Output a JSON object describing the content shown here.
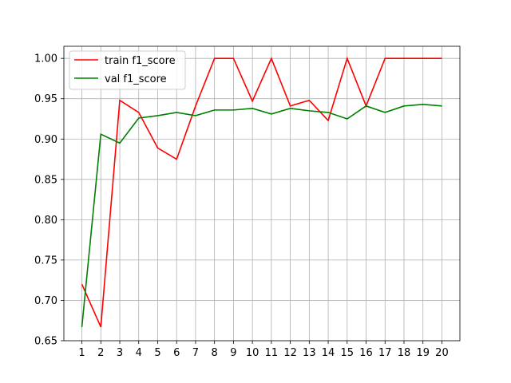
{
  "chart_data": {
    "type": "line",
    "title": "",
    "xlabel": "",
    "ylabel": "",
    "x": [
      1,
      2,
      3,
      4,
      5,
      6,
      7,
      8,
      9,
      10,
      11,
      12,
      13,
      14,
      15,
      16,
      17,
      18,
      19,
      20
    ],
    "xlim": [
      0.05,
      20.95
    ],
    "ylim": [
      0.65,
      1.015
    ],
    "yticks": [
      0.65,
      0.7,
      0.75,
      0.8,
      0.85,
      0.9,
      0.95,
      1.0
    ],
    "ytick_labels": [
      "0.65",
      "0.70",
      "0.75",
      "0.80",
      "0.85",
      "0.90",
      "0.95",
      "1.00"
    ],
    "xtick_labels": [
      "1",
      "2",
      "3",
      "4",
      "5",
      "6",
      "7",
      "8",
      "9",
      "10",
      "11",
      "12",
      "13",
      "14",
      "15",
      "16",
      "17",
      "18",
      "19",
      "20"
    ],
    "grid": true,
    "legend_position": "upper left",
    "series": [
      {
        "name": "train f1_score",
        "color": "#ff0000",
        "values": [
          0.72,
          0.667,
          0.948,
          0.933,
          0.889,
          0.875,
          0.941,
          1.0,
          1.0,
          0.947,
          1.0,
          0.941,
          0.948,
          0.923,
          1.0,
          0.941,
          1.0,
          1.0,
          1.0,
          1.0
        ]
      },
      {
        "name": "val f1_score",
        "color": "#008000",
        "values": [
          0.667,
          0.906,
          0.895,
          0.926,
          0.929,
          0.933,
          0.929,
          0.936,
          0.936,
          0.938,
          0.931,
          0.938,
          0.935,
          0.933,
          0.925,
          0.941,
          0.933,
          0.941,
          0.943,
          0.941
        ]
      }
    ]
  }
}
